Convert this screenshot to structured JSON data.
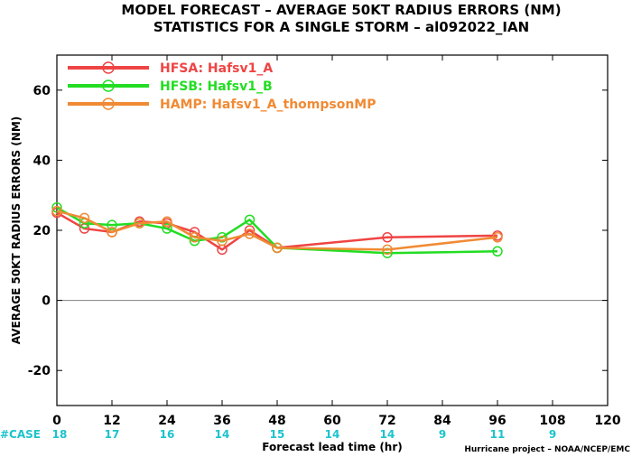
{
  "colors": {
    "HFSA": "#ef4444",
    "HFSB": "#22dd22",
    "HAMP": "#f08a34",
    "case": "#1cc3cc",
    "zero_line": "#808080"
  },
  "chart_data": {
    "type": "line",
    "title_lines": [
      "MODEL FORECAST – AVERAGE 50KT RADIUS ERRORS (NM)",
      "STATISTICS FOR A SINGLE STORM – al092022_IAN"
    ],
    "xlabel": "Forecast lead time (hr)",
    "ylabel": "AVERAGE 50KT RADIUS ERRORS (NM)",
    "xlim": [
      0,
      120
    ],
    "ylim": [
      -30,
      70
    ],
    "x_ticks": [
      0,
      12,
      24,
      36,
      48,
      60,
      72,
      84,
      96,
      108,
      120
    ],
    "y_ticks": [
      -20,
      0,
      20,
      40,
      60
    ],
    "grid": false,
    "legend_position": "top-left",
    "series": [
      {
        "key": "HFSA",
        "legend_label": "HFSA:  Hafsv1_A",
        "x": [
          0,
          6,
          12,
          18,
          24,
          30,
          36,
          42,
          48,
          72,
          96
        ],
        "y": [
          25.0,
          20.5,
          19.5,
          22.5,
          22.0,
          19.5,
          14.5,
          20.0,
          15.0,
          18.0,
          18.5
        ]
      },
      {
        "key": "HFSB",
        "legend_label": "HFSB:  Hafsv1_B",
        "x": [
          0,
          6,
          12,
          18,
          24,
          30,
          36,
          42,
          48,
          72,
          96
        ],
        "y": [
          26.5,
          22.0,
          21.5,
          22.0,
          20.5,
          17.0,
          18.0,
          23.0,
          15.0,
          13.5,
          14.0
        ]
      },
      {
        "key": "HAMP",
        "legend_label": "HAMP:  Hafsv1_A_thompsonMP",
        "x": [
          0,
          6,
          12,
          18,
          24,
          30,
          36,
          42,
          48,
          72,
          96
        ],
        "y": [
          25.5,
          23.5,
          19.5,
          22.0,
          22.5,
          18.0,
          17.0,
          19.0,
          15.0,
          14.5,
          18.0
        ]
      }
    ],
    "case_counts": {
      "label": "#CASE",
      "x": [
        0,
        12,
        24,
        36,
        48,
        60,
        72,
        84,
        96,
        108
      ],
      "counts": [
        "18",
        "17",
        "16",
        "14",
        "15",
        "14",
        "14",
        "9",
        "11",
        "9"
      ]
    },
    "credit": "Hurricane project – NOAA/NCEP/EMC"
  }
}
